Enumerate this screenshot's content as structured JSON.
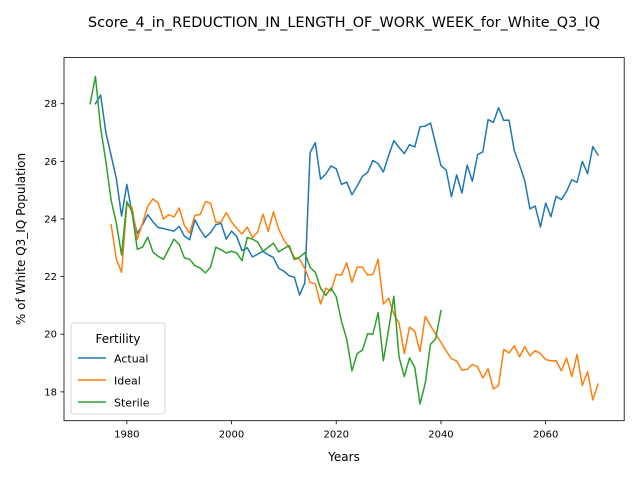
{
  "chart_data": {
    "type": "line",
    "title": "Score_4_in_REDUCTION_IN_LENGTH_OF_WORK_WEEK_for_White_Q3_IQ",
    "xlabel": "Years",
    "ylabel": "% of White Q3_IQ Population",
    "xlim": [
      1968,
      2075
    ],
    "ylim": [
      17.0,
      29.6
    ],
    "xticks": [
      1980,
      2000,
      2020,
      2040,
      2060
    ],
    "yticks": [
      18,
      20,
      22,
      24,
      26,
      28
    ],
    "grid": false,
    "legend": {
      "title": "Fertility",
      "placement": "lower-left"
    },
    "series": [
      {
        "name": "Actual",
        "color": "#1f77b4",
        "x": [
          1974,
          1975,
          1976,
          1977,
          1978,
          1979,
          1980,
          1981,
          1982,
          1983,
          1984,
          1985,
          1986,
          1987,
          1988,
          1989,
          1990,
          1991,
          1992,
          1993,
          1994,
          1995,
          1996,
          1997,
          1998,
          1999,
          2000,
          2001,
          2002,
          2003,
          2004,
          2005,
          2006,
          2007,
          2008,
          2009,
          2010,
          2011,
          2012,
          2013,
          2014,
          2015,
          2016,
          2017,
          2018,
          2019,
          2020,
          2021,
          2022,
          2023,
          2024,
          2025,
          2026,
          2027,
          2028,
          2029,
          2030,
          2031,
          2032,
          2033,
          2034,
          2035,
          2036,
          2037,
          2038,
          2039,
          2040,
          2041,
          2042,
          2043,
          2044,
          2045,
          2046,
          2047,
          2048,
          2049,
          2050,
          2051,
          2052,
          2053,
          2054,
          2055,
          2056,
          2057,
          2058,
          2059,
          2060,
          2061,
          2062,
          2063,
          2064,
          2065,
          2066,
          2067,
          2068,
          2069,
          2070
        ],
        "values": [
          28.0,
          28.3,
          27.0,
          26.2,
          25.4,
          24.1,
          25.2,
          24.2,
          23.5,
          23.8,
          24.15,
          23.9,
          23.7,
          23.67,
          23.62,
          23.58,
          23.74,
          23.4,
          23.28,
          23.97,
          23.63,
          23.36,
          23.53,
          23.8,
          23.85,
          23.3,
          23.58,
          23.39,
          22.9,
          23.0,
          22.68,
          22.78,
          22.88,
          22.76,
          22.66,
          22.29,
          22.19,
          22.03,
          21.98,
          21.36,
          21.78,
          26.3,
          26.65,
          25.38,
          25.56,
          25.84,
          25.74,
          25.2,
          25.28,
          24.84,
          25.15,
          25.48,
          25.62,
          26.03,
          25.92,
          25.63,
          26.2,
          26.72,
          26.48,
          26.27,
          26.58,
          26.5,
          27.2,
          27.22,
          27.33,
          26.6,
          25.85,
          25.7,
          24.77,
          25.53,
          24.9,
          25.87,
          25.31,
          26.23,
          26.33,
          27.45,
          27.35,
          27.86,
          27.42,
          27.43,
          26.38,
          25.88,
          25.33,
          24.35,
          24.45,
          23.72,
          24.55,
          24.08,
          24.79,
          24.67,
          24.96,
          25.36,
          25.27,
          26.0,
          25.57,
          26.51,
          26.22
        ]
      },
      {
        "name": "Ideal",
        "color": "#ff7f0e",
        "x": [
          1977,
          1978,
          1979,
          1980,
          1981,
          1982,
          1983,
          1984,
          1985,
          1986,
          1987,
          1988,
          1989,
          1990,
          1991,
          1992,
          1993,
          1994,
          1995,
          1996,
          1997,
          1998,
          1999,
          2000,
          2001,
          2002,
          2003,
          2004,
          2005,
          2006,
          2007,
          2008,
          2009,
          2010,
          2011,
          2012,
          2013,
          2014,
          2015,
          2016,
          2017,
          2018,
          2019,
          2020,
          2021,
          2022,
          2023,
          2024,
          2025,
          2026,
          2027,
          2028,
          2029,
          2030,
          2031,
          2032,
          2033,
          2034,
          2035,
          2036,
          2037,
          2038,
          2039,
          2040,
          2041,
          2042,
          2043,
          2044,
          2045,
          2046,
          2047,
          2048,
          2049,
          2050,
          2051,
          2052,
          2053,
          2054,
          2055,
          2056,
          2057,
          2058,
          2059,
          2060,
          2061,
          2062,
          2063,
          2064,
          2065,
          2066,
          2067,
          2068,
          2069,
          2070
        ],
        "values": [
          23.8,
          22.6,
          22.15,
          24.5,
          24.4,
          23.3,
          23.85,
          24.45,
          24.7,
          24.55,
          24.0,
          24.15,
          24.07,
          24.38,
          23.78,
          23.5,
          24.13,
          24.15,
          24.6,
          24.55,
          23.88,
          23.9,
          24.22,
          23.9,
          23.67,
          23.48,
          23.72,
          23.35,
          23.55,
          24.17,
          23.57,
          24.25,
          23.65,
          23.27,
          23.0,
          22.66,
          22.6,
          22.28,
          21.8,
          21.75,
          21.05,
          21.6,
          21.5,
          22.08,
          22.05,
          22.48,
          21.8,
          22.33,
          22.33,
          22.05,
          22.08,
          22.6,
          21.05,
          21.25,
          20.7,
          20.38,
          19.33,
          20.25,
          20.1,
          19.4,
          20.62,
          20.3,
          20.0,
          19.72,
          19.42,
          19.15,
          19.07,
          18.75,
          18.78,
          18.95,
          18.87,
          18.48,
          18.8,
          18.1,
          18.22,
          19.47,
          19.35,
          19.6,
          19.22,
          19.57,
          19.25,
          19.43,
          19.33,
          19.12,
          19.08,
          19.08,
          18.73,
          19.17,
          18.53,
          19.3,
          18.22,
          18.7,
          17.72,
          18.27
        ]
      },
      {
        "name": "Sterile",
        "color": "#2ca02c",
        "x": [
          1973,
          1974,
          1975,
          1976,
          1977,
          1978,
          1979,
          1980,
          1981,
          1982,
          1983,
          1984,
          1985,
          1986,
          1987,
          1988,
          1989,
          1990,
          1991,
          1992,
          1993,
          1994,
          1995,
          1996,
          1997,
          1998,
          1999,
          2000,
          2001,
          2002,
          2003,
          2004,
          2005,
          2006,
          2007,
          2008,
          2009,
          2010,
          2011,
          2012,
          2013,
          2014,
          2015,
          2016,
          2017,
          2018,
          2019,
          2020,
          2021,
          2022,
          2023,
          2024,
          2025,
          2026,
          2027,
          2028,
          2029,
          2030,
          2031,
          2032,
          2033,
          2034,
          2035,
          2036,
          2037,
          2038,
          2039,
          2040
        ],
        "values": [
          28.0,
          28.95,
          27.15,
          26.0,
          24.65,
          23.85,
          22.75,
          24.6,
          24.25,
          22.95,
          23.02,
          23.37,
          22.85,
          22.7,
          22.6,
          22.95,
          23.3,
          23.12,
          22.65,
          22.6,
          22.38,
          22.3,
          22.13,
          22.33,
          23.02,
          22.93,
          22.82,
          22.88,
          22.82,
          22.55,
          23.36,
          23.3,
          23.2,
          22.88,
          23.02,
          23.16,
          22.86,
          22.97,
          23.08,
          22.59,
          22.68,
          22.83,
          22.32,
          22.15,
          21.6,
          21.35,
          21.6,
          21.3,
          20.45,
          19.83,
          18.73,
          19.33,
          19.45,
          20.02,
          20.0,
          20.75,
          19.08,
          20.17,
          21.32,
          19.2,
          18.53,
          19.18,
          18.85,
          17.58,
          18.3,
          19.65,
          19.85,
          20.82
        ]
      }
    ]
  }
}
